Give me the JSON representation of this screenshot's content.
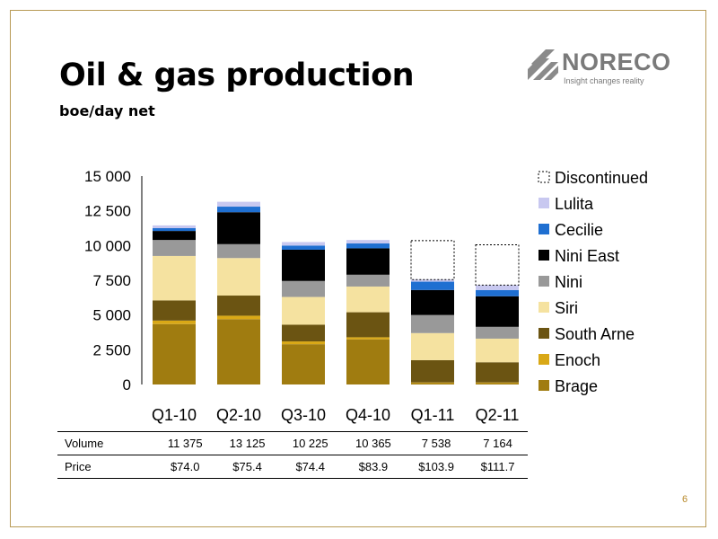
{
  "title": "Oil & gas production",
  "subtitle": "boe/day net",
  "logo": {
    "name": "NORECO",
    "tagline": "Insight changes reality",
    "icon": "noreco-stripes-icon"
  },
  "page_number": "6",
  "colors": {
    "frame": "#b89a55",
    "Brage": "#a07c10",
    "Enoch": "#d9a816",
    "South Arne": "#6b5412",
    "Siri": "#f5e2a0",
    "Nini": "#999999",
    "Nini East": "#000000",
    "Cecilie": "#1f6fd1",
    "Lulita": "#c8c8f0",
    "Discontinued": "#ffffff"
  },
  "chart_data": {
    "type": "bar",
    "stacked": true,
    "categories": [
      "Q1-10",
      "Q2-10",
      "Q3-10",
      "Q4-10",
      "Q1-11",
      "Q2-11"
    ],
    "ylim": [
      0,
      15000
    ],
    "yticks": [
      0,
      2500,
      5000,
      7500,
      10000,
      12500,
      15000
    ],
    "ytick_labels": [
      "0",
      "2 500",
      "5 000",
      "7 500",
      "10 000",
      "12 500",
      "15 000"
    ],
    "legend_position": "right",
    "series": [
      {
        "name": "Brage",
        "values": [
          4350,
          4700,
          2900,
          3250,
          100,
          100
        ]
      },
      {
        "name": "Enoch",
        "values": [
          250,
          250,
          200,
          150,
          50,
          50
        ]
      },
      {
        "name": "South Arne",
        "values": [
          1450,
          1450,
          1200,
          1800,
          1600,
          1450
        ]
      },
      {
        "name": "Siri",
        "values": [
          3200,
          2700,
          2000,
          1850,
          1950,
          1700
        ]
      },
      {
        "name": "Nini",
        "values": [
          1150,
          1000,
          1150,
          850,
          1300,
          850
        ]
      },
      {
        "name": "Nini East",
        "values": [
          650,
          2300,
          2250,
          1900,
          1800,
          2200
        ]
      },
      {
        "name": "Cecilie",
        "values": [
          200,
          400,
          300,
          350,
          600,
          450
        ]
      },
      {
        "name": "Lulita",
        "values": [
          200,
          350,
          250,
          250,
          150,
          350
        ]
      },
      {
        "name": "Discontinued",
        "values": [
          0,
          0,
          0,
          0,
          2800,
          2900
        ]
      }
    ],
    "legend": [
      "Discontinued",
      "Lulita",
      "Cecilie",
      "Nini East",
      "Nini",
      "Siri",
      "South Arne",
      "Enoch",
      "Brage"
    ]
  },
  "table": {
    "rows": [
      {
        "label": "Volume",
        "values": [
          "11 375",
          "13 125",
          "10 225",
          "10 365",
          "7 538",
          "7 164"
        ]
      },
      {
        "label": "Price",
        "values": [
          "$74.0",
          "$75.4",
          "$74.4",
          "$83.9",
          "$103.9",
          "$111.7"
        ]
      }
    ]
  }
}
